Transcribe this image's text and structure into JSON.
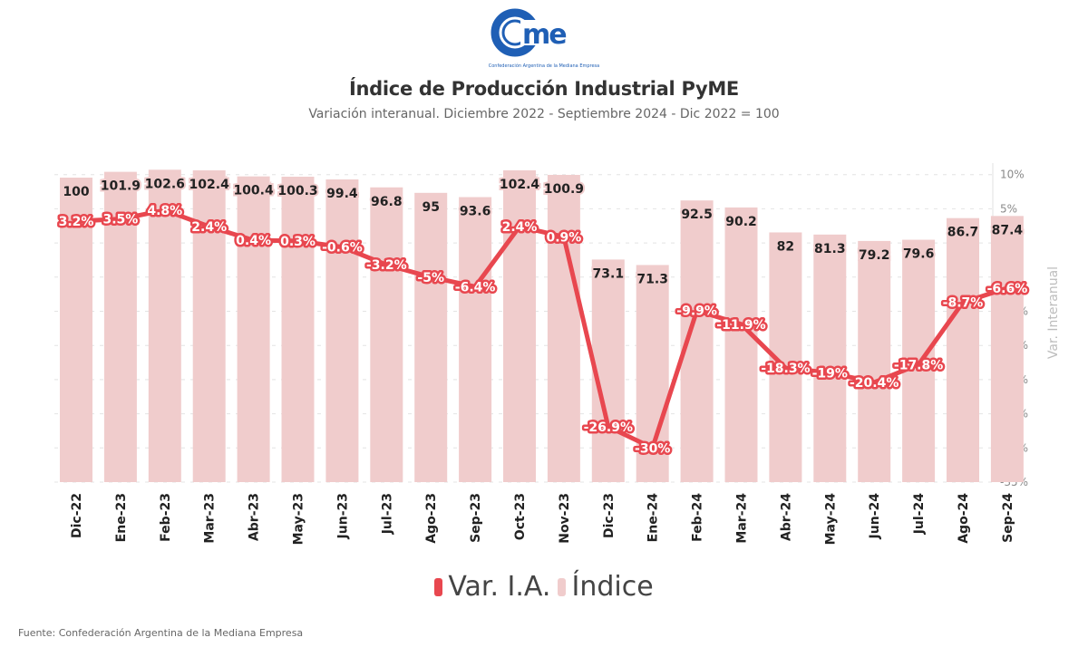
{
  "logo": {
    "text": "came",
    "tagline": "Confederación Argentina de la Mediana Empresa",
    "color": "#1f5fb5"
  },
  "chart_data": {
    "type": "bar+line",
    "title": "Índice de Producción Industrial PyME",
    "subtitle": "Variación interanual. Diciembre 2022 - Septiembre 2024 - Dic 2022 = 100",
    "categories": [
      "Dic-22",
      "Ene-23",
      "Feb-23",
      "Mar-23",
      "Abr-23",
      "May-23",
      "Jun-23",
      "Jul-23",
      "Ago-23",
      "Sep-23",
      "Oct-23",
      "Nov-23",
      "Dic-23",
      "Ene-24",
      "Feb-24",
      "Mar-24",
      "Abr-24",
      "May-24",
      "Jun-24",
      "Jul-24",
      "Ago-24",
      "Sep-24"
    ],
    "series": [
      {
        "name": "Var. I.A.",
        "type": "line",
        "axis": "right",
        "color": "#e8474f",
        "values": [
          3.2,
          3.5,
          4.8,
          2.4,
          0.4,
          0.3,
          -0.6,
          -3.2,
          -5,
          -6.4,
          2.4,
          0.9,
          -26.9,
          -30,
          -9.9,
          -11.9,
          -18.3,
          -19,
          -20.4,
          -17.8,
          -8.7,
          -6.6
        ],
        "labels": [
          "3.2%",
          "3.5%",
          "4.8%",
          "2.4%",
          "0.4%",
          "0.3%",
          "-0.6%",
          "-3.2%",
          "-5%",
          "-6.4%",
          "2.4%",
          "0.9%",
          "-26.9%",
          "-30%",
          "-9.9%",
          "-11.9%",
          "-18.3%",
          "-19%",
          "-20.4%",
          "-17.8%",
          "-8.7%",
          "-6.6%"
        ]
      },
      {
        "name": "Índice",
        "type": "bar",
        "axis": "left",
        "color": "#f0cccc",
        "values": [
          100,
          101.9,
          102.6,
          102.4,
          100.4,
          100.3,
          99.4,
          96.8,
          95,
          93.6,
          102.4,
          100.9,
          73.1,
          71.3,
          92.5,
          90.2,
          82,
          81.3,
          79.2,
          79.6,
          86.7,
          87.4
        ],
        "labels": [
          "100",
          "101.9",
          "102.6",
          "102.4",
          "100.4",
          "100.3",
          "99.4",
          "96.8",
          "95",
          "93.6",
          "102.4",
          "100.9",
          "73.1",
          "71.3",
          "92.5",
          "90.2",
          "82",
          "81.3",
          "79.2",
          "79.6",
          "86.7",
          "87.4"
        ]
      }
    ],
    "y_right": {
      "label": "Var. Interanual",
      "ylim": [
        -35,
        10
      ],
      "ticks": [
        "10%",
        "5%",
        "0%",
        "-5%",
        "-10%",
        "-15%",
        "-20%",
        "-25%",
        "-30%",
        "-35%"
      ]
    },
    "y_left": {
      "visible": false,
      "ylim": [
        0,
        105
      ]
    },
    "grid": true,
    "legend_position": "bottom"
  },
  "footer": "Fuente: Confederación Argentina de la Mediana Empresa"
}
